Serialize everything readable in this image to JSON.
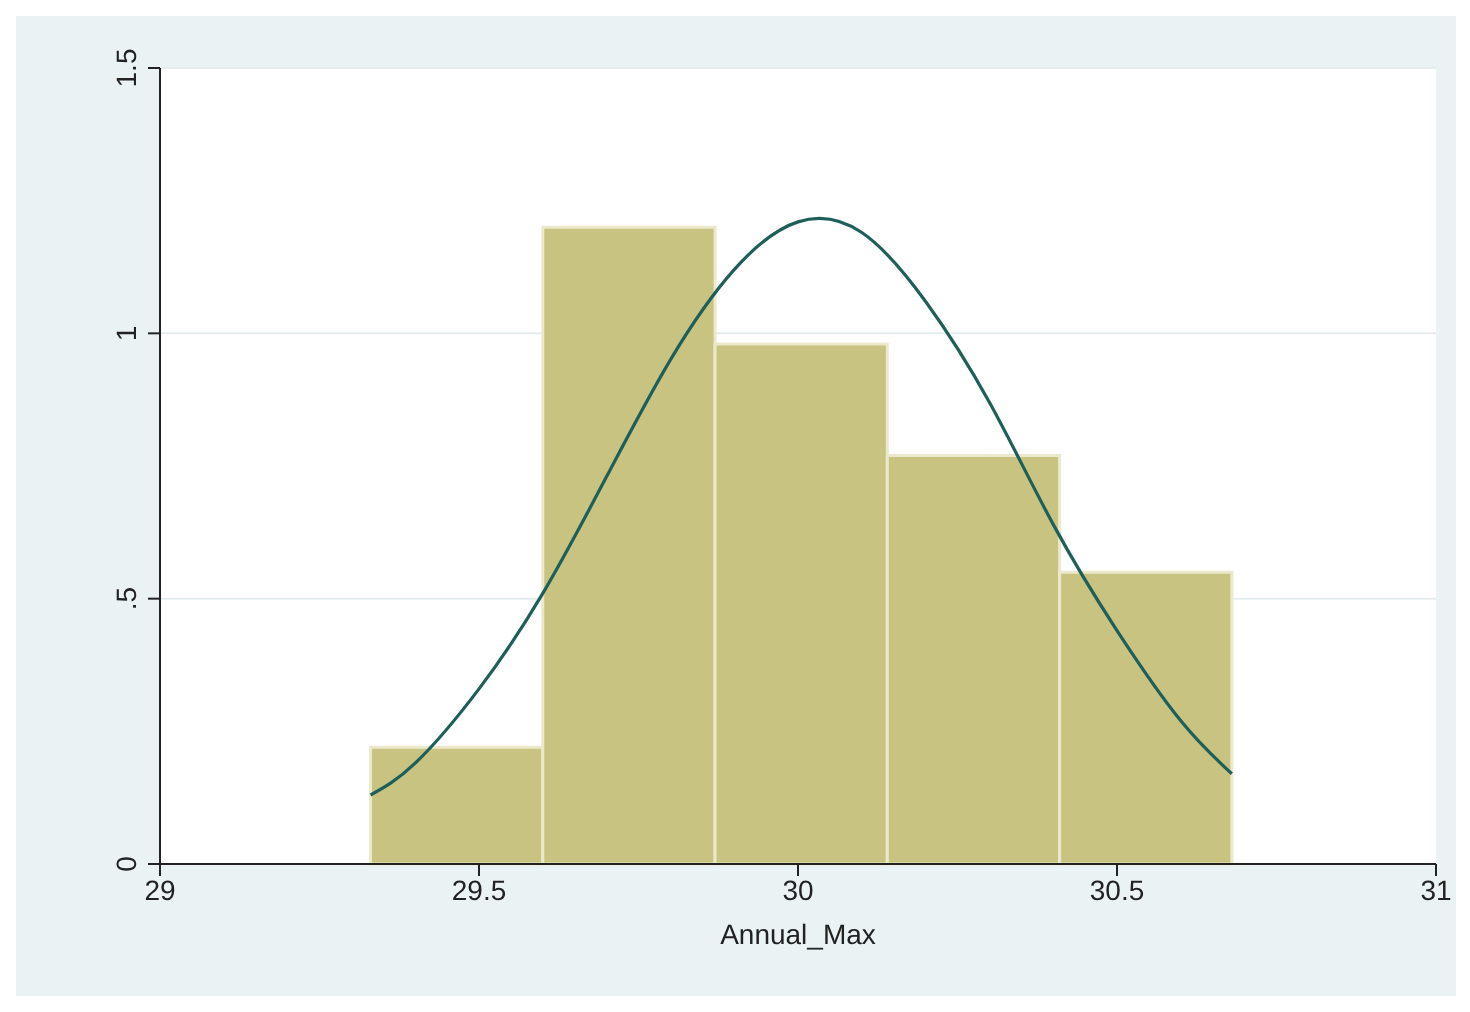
{
  "chart_data": {
    "type": "histogram",
    "xlabel": "Annual_Max",
    "bins": [
      29.33,
      29.6,
      29.87,
      30.14,
      30.41,
      30.68
    ],
    "values": [
      0.22,
      1.2,
      0.98,
      0.77,
      0.55
    ],
    "color": "#c9c382",
    "series": [
      {
        "type": "line",
        "color": "#1f5f5a",
        "x": [
          29.33,
          29.4,
          29.5,
          29.6,
          29.7,
          29.8,
          29.9,
          30.0,
          30.1,
          30.2,
          30.3,
          30.4,
          30.5,
          30.6,
          30.68
        ],
        "values": [
          0.13,
          0.19,
          0.33,
          0.51,
          0.73,
          0.95,
          1.12,
          1.21,
          1.19,
          1.06,
          0.87,
          0.64,
          0.44,
          0.27,
          0.17
        ]
      }
    ],
    "xlim": [
      29,
      31
    ],
    "xticks": [
      29,
      29.5,
      30,
      30.5,
      31
    ],
    "ylim": [
      0,
      1.5
    ],
    "yticks": [
      {
        "value": 0,
        "label": "0"
      },
      {
        "value": 0.5,
        "label": ".5"
      },
      {
        "value": 1,
        "label": "1"
      },
      {
        "value": 1.5,
        "label": "1.5"
      }
    ],
    "grid": "y",
    "marker": "none",
    "line_style": "solid"
  }
}
